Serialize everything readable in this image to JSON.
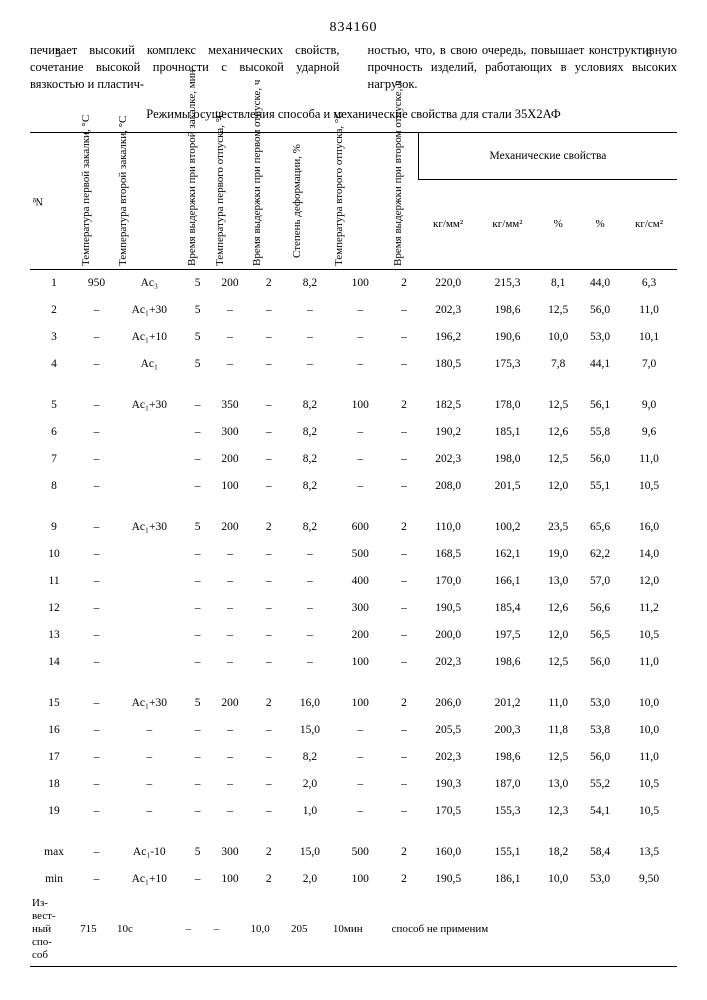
{
  "doc_number": "834160",
  "col_left_num": "5",
  "col_right_num": "6",
  "para_left": "печивает высокий комплекс механических свойств, сочетание высокой прочности с высокой ударной вязкостью и пластич-",
  "para_right": "ностью, что, в свою очередь, повышает конструктивную прочность изделий, работающих в условиях высоких нагрузок.",
  "table_caption": "Режимы осуществления способа и механические свойства для стали 35X2АФ",
  "headers": {
    "c0": "№",
    "c1": "Температура первой закалки, °С",
    "c2": "Температура второй закалки, °С",
    "c3": "Время выдержки при второй закалке, мин",
    "c4": "Температура первого отпуска, °С",
    "c5": "Время выдержки при первом отпуске, ч",
    "c6": "Степень деформации, %",
    "c7": "Температура второго отпуска, °С",
    "c8": "Время выдержки при втором отпуске, ч",
    "mech": "Механические свойства",
    "m1": "кг/мм²",
    "m2": "кг/мм²",
    "m3": "%",
    "m4": "%",
    "m5": "кг/см²"
  },
  "rows": [
    [
      "1",
      "950",
      "Ac₃",
      "5",
      "200",
      "2",
      "8,2",
      "100",
      "2",
      "220,0",
      "215,3",
      "8,1",
      "44,0",
      "6,3"
    ],
    [
      "2",
      "–",
      "Ac₁+30",
      "5",
      "–",
      "–",
      "–",
      "–",
      "–",
      "202,3",
      "198,6",
      "12,5",
      "56,0",
      "11,0"
    ],
    [
      "3",
      "–",
      "Ac₁+10",
      "5",
      "–",
      "–",
      "–",
      "–",
      "–",
      "196,2",
      "190,6",
      "10,0",
      "53,0",
      "10,1"
    ],
    [
      "4",
      "–",
      "Ac₁",
      "5",
      "–",
      "–",
      "–",
      "–",
      "–",
      "180,5",
      "175,3",
      "7,8",
      "44,1",
      "7,0"
    ],
    [
      "5",
      "–",
      "Ac₁+30",
      "–",
      "350",
      "–",
      "8,2",
      "100",
      "2",
      "182,5",
      "178,0",
      "12,5",
      "56,1",
      "9,0"
    ],
    [
      "6",
      "–",
      "",
      "–",
      "300",
      "–",
      "8,2",
      "–",
      "–",
      "190,2",
      "185,1",
      "12,6",
      "55,8",
      "9,6"
    ],
    [
      "7",
      "–",
      "",
      "–",
      "200",
      "–",
      "8,2",
      "–",
      "–",
      "202,3",
      "198,0",
      "12,5",
      "56,0",
      "11,0"
    ],
    [
      "8",
      "–",
      "",
      "–",
      "100",
      "–",
      "8,2",
      "–",
      "–",
      "208,0",
      "201,5",
      "12,0",
      "55,1",
      "10,5"
    ],
    [
      "9",
      "–",
      "Ac₁+30",
      "5",
      "200",
      "2",
      "8,2",
      "600",
      "2",
      "110,0",
      "100,2",
      "23,5",
      "65,6",
      "16,0"
    ],
    [
      "10",
      "–",
      "",
      "–",
      "–",
      "–",
      "–",
      "500",
      "–",
      "168,5",
      "162,1",
      "19,0",
      "62,2",
      "14,0"
    ],
    [
      "11",
      "–",
      "",
      "–",
      "–",
      "–",
      "–",
      "400",
      "–",
      "170,0",
      "166,1",
      "13,0",
      "57,0",
      "12,0"
    ],
    [
      "12",
      "–",
      "",
      "–",
      "–",
      "–",
      "–",
      "300",
      "–",
      "190,5",
      "185,4",
      "12,6",
      "56,6",
      "11,2"
    ],
    [
      "13",
      "–",
      "",
      "–",
      "–",
      "–",
      "–",
      "200",
      "–",
      "200,0",
      "197,5",
      "12,0",
      "56,5",
      "10,5"
    ],
    [
      "14",
      "–",
      "",
      "–",
      "–",
      "–",
      "–",
      "100",
      "–",
      "202,3",
      "198,6",
      "12,5",
      "56,0",
      "11,0"
    ],
    [
      "15",
      "–",
      "Ac₁+30",
      "5",
      "200",
      "2",
      "16,0",
      "100",
      "2",
      "206,0",
      "201,2",
      "11,0",
      "53,0",
      "10,0"
    ],
    [
      "16",
      "–",
      "–",
      "–",
      "–",
      "–",
      "15,0",
      "–",
      "–",
      "205,5",
      "200,3",
      "11,8",
      "53,8",
      "10,0"
    ],
    [
      "17",
      "–",
      "–",
      "–",
      "–",
      "–",
      "8,2",
      "–",
      "–",
      "202,3",
      "198,6",
      "12,5",
      "56,0",
      "11,0"
    ],
    [
      "18",
      "–",
      "–",
      "–",
      "–",
      "–",
      "2,0",
      "–",
      "–",
      "190,3",
      "187,0",
      "13,0",
      "55,2",
      "10,5"
    ],
    [
      "19",
      "–",
      "–",
      "–",
      "–",
      "–",
      "1,0",
      "–",
      "–",
      "170,5",
      "155,3",
      "12,3",
      "54,1",
      "10,5"
    ],
    [
      "max",
      "–",
      "Ac₁-10",
      "5",
      "300",
      "2",
      "15,0",
      "500",
      "2",
      "160,0",
      "155,1",
      "18,2",
      "58,4",
      "13,5"
    ],
    [
      "min",
      "–",
      "Ac₁+10",
      "–",
      "100",
      "2",
      "2,0",
      "100",
      "2",
      "190,5",
      "186,1",
      "10,0",
      "53,0",
      "9,50"
    ]
  ],
  "known_label": "Из-\nвест-\nный\nспо-\nсоб",
  "known_row": [
    "",
    "715",
    "10с",
    "–",
    "–",
    "10,0",
    "205",
    "10мин",
    "способ не применим"
  ],
  "colors": {
    "text": "#000000",
    "bg": "#ffffff",
    "rule": "#000000"
  }
}
